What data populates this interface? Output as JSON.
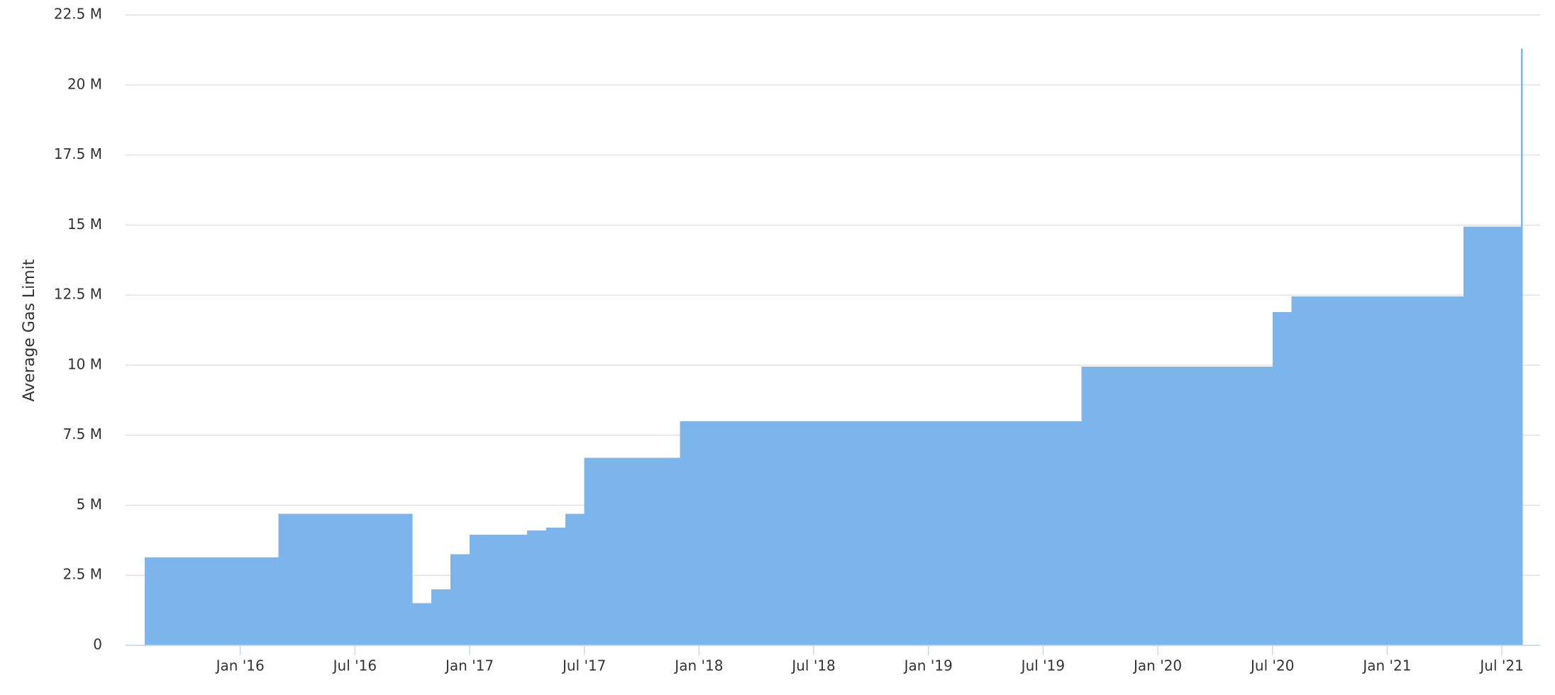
{
  "chart_data": {
    "type": "area",
    "y_label": "Average Gas Limit",
    "color": "#7cb5ec",
    "grid": true,
    "x": [
      "2015-08",
      "2015-09",
      "2015-10",
      "2015-11",
      "2015-12",
      "2016-01",
      "2016-02",
      "2016-03",
      "2016-04",
      "2016-05",
      "2016-06",
      "2016-07",
      "2016-08",
      "2016-09",
      "2016-10",
      "2016-11",
      "2016-12",
      "2017-01",
      "2017-02",
      "2017-03",
      "2017-04",
      "2017-05",
      "2017-06",
      "2017-07",
      "2017-08",
      "2017-09",
      "2017-10",
      "2017-11",
      "2017-12",
      "2018-01",
      "2018-02",
      "2018-03",
      "2018-04",
      "2018-05",
      "2018-06",
      "2018-07",
      "2018-08",
      "2018-09",
      "2018-10",
      "2018-11",
      "2018-12",
      "2019-01",
      "2019-02",
      "2019-03",
      "2019-04",
      "2019-05",
      "2019-06",
      "2019-07",
      "2019-08",
      "2019-09",
      "2019-10",
      "2019-11",
      "2019-12",
      "2020-01",
      "2020-02",
      "2020-03",
      "2020-04",
      "2020-05",
      "2020-06",
      "2020-07",
      "2020-08",
      "2020-09",
      "2020-10",
      "2020-11",
      "2020-12",
      "2021-01",
      "2021-02",
      "2021-03",
      "2021-04",
      "2021-05",
      "2021-06",
      "2021-07",
      "2021-08"
    ],
    "values": [
      3140000,
      3140000,
      3140000,
      3140000,
      3140000,
      3140000,
      3140000,
      4700000,
      4700000,
      4700000,
      4700000,
      4700000,
      4700000,
      4700000,
      1500000,
      2000000,
      3250000,
      3950000,
      3950000,
      3950000,
      4100000,
      4200000,
      4700000,
      6700000,
      6700000,
      6700000,
      6700000,
      6700000,
      8000000,
      8000000,
      8000000,
      8000000,
      8000000,
      8000000,
      8000000,
      8000000,
      8000000,
      8000000,
      8000000,
      8000000,
      8000000,
      8000000,
      8000000,
      8000000,
      8000000,
      8000000,
      8000000,
      8000000,
      8000000,
      9950000,
      9950000,
      9950000,
      9950000,
      9950000,
      9950000,
      9950000,
      9950000,
      9950000,
      9950000,
      11900000,
      12450000,
      12450000,
      12450000,
      12450000,
      12450000,
      12450000,
      12450000,
      12450000,
      12450000,
      14950000,
      14950000,
      14950000,
      21300000
    ],
    "xlim": [
      "2015-07",
      "2021-09"
    ],
    "xticks": [
      {
        "value": "2016-01",
        "label": "Jan '16"
      },
      {
        "value": "2016-07",
        "label": "Jul '16"
      },
      {
        "value": "2017-01",
        "label": "Jan '17"
      },
      {
        "value": "2017-07",
        "label": "Jul '17"
      },
      {
        "value": "2018-01",
        "label": "Jan '18"
      },
      {
        "value": "2018-07",
        "label": "Jul '18"
      },
      {
        "value": "2019-01",
        "label": "Jan '19"
      },
      {
        "value": "2019-07",
        "label": "Jul '19"
      },
      {
        "value": "2020-01",
        "label": "Jan '20"
      },
      {
        "value": "2020-07",
        "label": "Jul '20"
      },
      {
        "value": "2021-01",
        "label": "Jan '21"
      },
      {
        "value": "2021-07",
        "label": "Jul '21"
      }
    ],
    "ylim": [
      0,
      22500000
    ],
    "yticks": [
      0,
      {
        "value": 2500000,
        "label": "2.5 M"
      },
      {
        "value": 5000000,
        "label": "5 M"
      },
      {
        "value": 7500000,
        "label": "7.5 M"
      },
      {
        "value": 10000000,
        "label": "10 M"
      },
      {
        "value": 12500000,
        "label": "12.5 M"
      },
      {
        "value": 15000000,
        "label": "15 M"
      },
      {
        "value": 17500000,
        "label": "17.5 M"
      },
      {
        "value": 20000000,
        "label": "20 M"
      },
      {
        "value": 22500000,
        "label": "22.5 M"
      }
    ]
  }
}
